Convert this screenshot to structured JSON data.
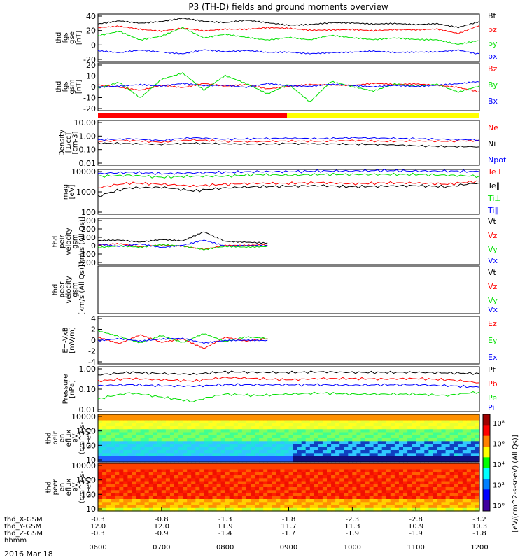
{
  "title": "P3 (TH-D) fields and ground moments overview",
  "date_label": "2016 Mar 18",
  "x_axis": {
    "hhmm": [
      "0600",
      "0700",
      "0800",
      "0900",
      "1000",
      "1100",
      "1200"
    ],
    "rows": [
      {
        "label": "thd_X-GSM",
        "values": [
          "-0.3",
          "-0.8",
          "-1.3",
          "-1.8",
          "-2.3",
          "-2.8",
          "-3.2"
        ]
      },
      {
        "label": "thd_Y-GSM",
        "values": [
          "12.0",
          "12.0",
          "11.9",
          "11.7",
          "11.3",
          "10.9",
          "10.3"
        ]
      },
      {
        "label": "thd_Z-GSM",
        "values": [
          "-0.3",
          "-0.9",
          "-1.4",
          "-1.7",
          "-1.9",
          "-1.9",
          "-1.8"
        ]
      },
      {
        "label": "hhmm",
        "values": []
      }
    ]
  },
  "colorbar": {
    "label": "[eV/(cm^2-s-sr-eV) (All Qs)]",
    "ticks": [
      "10⁸",
      "10⁶",
      "10⁴",
      "10²",
      "10⁰"
    ],
    "colors": [
      "#a00000",
      "#ff0000",
      "#ff8000",
      "#ffff00",
      "#00ff00",
      "#00ffff",
      "#0080ff",
      "#0000ff",
      "#4000a0"
    ]
  },
  "colors": {
    "black": "#000000",
    "red": "#ff0000",
    "green": "#00e000",
    "blue": "#0000ff",
    "yellow": "#ffff00"
  },
  "chart_data": [
    {
      "id": "fgs",
      "type": "line",
      "ylabel": [
        "thd",
        "fgs",
        "gse",
        "[nT]"
      ],
      "yticks": [
        "40",
        "20",
        "0",
        "-20"
      ],
      "ylim": [
        -25,
        42
      ],
      "series": [
        {
          "name": "Bt",
          "color": "black",
          "x": [
            0,
            20,
            40,
            60,
            80,
            100,
            120,
            140,
            160,
            180,
            200,
            220,
            240,
            260,
            280,
            300,
            320,
            340,
            360
          ],
          "values": [
            28,
            33,
            30,
            32,
            36,
            31,
            29,
            33,
            30,
            27,
            28,
            30,
            29,
            27,
            28,
            27,
            29,
            24,
            32
          ]
        },
        {
          "name": "bz",
          "color": "red",
          "x": [
            0,
            20,
            40,
            60,
            80,
            100,
            120,
            140,
            160,
            180,
            200,
            220,
            240,
            260,
            280,
            300,
            320,
            340,
            360
          ],
          "values": [
            22,
            24,
            20,
            18,
            23,
            19,
            21,
            20,
            22,
            21,
            19,
            20,
            21,
            19,
            20,
            19,
            20,
            14,
            26
          ]
        },
        {
          "name": "by",
          "color": "green",
          "x": [
            0,
            20,
            40,
            60,
            80,
            100,
            120,
            140,
            160,
            180,
            200,
            220,
            240,
            260,
            280,
            300,
            320,
            340,
            360
          ],
          "values": [
            12,
            18,
            5,
            10,
            22,
            8,
            14,
            10,
            6,
            9,
            5,
            11,
            8,
            6,
            9,
            7,
            6,
            -1,
            4
          ]
        },
        {
          "name": "bx",
          "color": "blue",
          "x": [
            0,
            20,
            40,
            60,
            80,
            100,
            120,
            140,
            160,
            180,
            200,
            220,
            240,
            260,
            280,
            300,
            320,
            340,
            360
          ],
          "values": [
            -10,
            -12,
            -8,
            -11,
            -14,
            -9,
            -12,
            -10,
            -12,
            -11,
            -13,
            -12,
            -12,
            -11,
            -13,
            -12,
            -11,
            -8,
            -14
          ]
        }
      ]
    },
    {
      "id": "fgs-gsm",
      "type": "line",
      "ylabel": [
        "thd",
        "fgs",
        "gsm",
        "[nT]"
      ],
      "yticks": [
        "20",
        "10",
        "0",
        "-10",
        "-20"
      ],
      "ylim": [
        -25,
        25
      ],
      "series": [
        {
          "name": "Bz",
          "color": "red",
          "x": [
            0,
            20,
            40,
            60,
            80,
            100,
            120,
            140,
            160,
            180,
            200,
            220,
            240,
            260,
            280,
            300,
            320,
            340,
            360
          ],
          "values": [
            2,
            0,
            -3,
            2,
            -1,
            3,
            0,
            2,
            -2,
            1,
            3,
            2,
            1,
            3,
            2,
            3,
            2,
            0,
            -5
          ]
        },
        {
          "name": "By",
          "color": "green",
          "x": [
            0,
            20,
            40,
            60,
            80,
            100,
            120,
            140,
            160,
            180,
            200,
            220,
            240,
            260,
            280,
            300,
            320,
            340,
            360
          ],
          "values": [
            -2,
            4,
            -12,
            8,
            15,
            -3,
            12,
            3,
            -8,
            2,
            -16,
            6,
            1,
            -4,
            3,
            0,
            2,
            -6,
            1
          ]
        },
        {
          "name": "Bx",
          "color": "blue",
          "x": [
            0,
            20,
            40,
            60,
            80,
            100,
            120,
            140,
            160,
            180,
            200,
            220,
            240,
            260,
            280,
            300,
            320,
            340,
            360
          ],
          "values": [
            0,
            1,
            2,
            0,
            3,
            1,
            2,
            0,
            4,
            1,
            0,
            2,
            1,
            0,
            2,
            1,
            2,
            3,
            5
          ]
        }
      ]
    },
    {
      "id": "density",
      "type": "line",
      "ylabel": [
        "Density",
        "[1/cc]",
        "[cm-3]"
      ],
      "yticks": [
        "10.00",
        "1.00",
        "0.10",
        "0.01"
      ],
      "ylim": [
        0.01,
        10
      ],
      "log": true,
      "series": [
        {
          "name": "Ne",
          "color": "red",
          "x": [
            0,
            30,
            60,
            90,
            120,
            150,
            180,
            210,
            240,
            270,
            300,
            330,
            360
          ],
          "values": [
            0.4,
            0.45,
            0.35,
            0.5,
            0.4,
            0.38,
            0.42,
            0.4,
            0.45,
            0.4,
            0.42,
            0.4,
            0.45
          ]
        },
        {
          "name": "Ni",
          "color": "black",
          "x": [
            0,
            30,
            60,
            90,
            120,
            150,
            180,
            210,
            240,
            270,
            300,
            330,
            360
          ],
          "values": [
            0.3,
            0.28,
            0.25,
            0.3,
            0.27,
            0.26,
            0.28,
            0.27,
            0.26,
            0.24,
            0.2,
            0.18,
            0.17
          ]
        },
        {
          "name": "Npot",
          "color": "blue",
          "x": [
            0,
            30,
            60,
            90,
            120,
            150,
            180,
            210,
            240,
            270,
            300,
            330,
            360
          ],
          "values": [
            0.5,
            0.6,
            0.45,
            0.7,
            0.55,
            0.6,
            0.65,
            0.6,
            0.7,
            0.65,
            0.6,
            0.55,
            0.5
          ]
        }
      ]
    },
    {
      "id": "temperature",
      "type": "line",
      "ylabel": [
        "mag",
        "[eV]"
      ],
      "yticks": [
        "10000",
        "1000",
        "100"
      ],
      "ylim": [
        100,
        10000
      ],
      "log": true,
      "series": [
        {
          "name": "Te⊥",
          "color": "red",
          "x": [
            0,
            30,
            60,
            90,
            120,
            150,
            180,
            210,
            240,
            270,
            300,
            330,
            360
          ],
          "values": [
            1500,
            2500,
            2200,
            1800,
            2200,
            2400,
            2400,
            2600,
            2300,
            2500,
            2500,
            2200,
            3000
          ]
        },
        {
          "name": "Te∥",
          "color": "black",
          "x": [
            0,
            30,
            60,
            90,
            120,
            150,
            180,
            210,
            240,
            270,
            300,
            330,
            360
          ],
          "values": [
            600,
            1500,
            1600,
            1100,
            1500,
            1700,
            1800,
            1900,
            1700,
            1800,
            1900,
            1700,
            2500
          ]
        },
        {
          "name": "Ti⊥",
          "color": "green",
          "x": [
            0,
            30,
            60,
            90,
            120,
            150,
            180,
            210,
            240,
            270,
            300,
            330,
            360
          ],
          "values": [
            5000,
            5500,
            4500,
            5000,
            5000,
            6000,
            5500,
            6000,
            6000,
            6000,
            6000,
            5500,
            5000
          ]
        },
        {
          "name": "Ti∥",
          "color": "blue",
          "x": [
            0,
            30,
            60,
            90,
            120,
            150,
            180,
            210,
            240,
            270,
            300,
            330,
            360
          ],
          "values": [
            6500,
            7500,
            6500,
            7000,
            7500,
            8000,
            8000,
            8500,
            8500,
            9000,
            8500,
            8500,
            8000
          ]
        }
      ]
    },
    {
      "id": "peir-velocity",
      "type": "line",
      "ylabel": [
        "thd",
        "peir",
        "velocity",
        "gsm",
        "[km/s (All Qs)]"
      ],
      "yticks": [
        "300",
        "200",
        "100",
        "0",
        "-100",
        "-200"
      ],
      "ylim": [
        -200,
        300
      ],
      "series": [
        {
          "name": "Vt",
          "color": "black",
          "x": [
            0,
            20,
            40,
            60,
            80,
            100,
            120,
            140,
            160
          ],
          "values": [
            60,
            70,
            50,
            75,
            55,
            150,
            45,
            40,
            35
          ]
        },
        {
          "name": "Vz",
          "color": "red",
          "x": [
            0,
            20,
            40,
            60,
            80,
            100,
            120,
            140,
            160
          ],
          "values": [
            10,
            20,
            -10,
            15,
            5,
            -30,
            10,
            5,
            10
          ]
        },
        {
          "name": "Vy",
          "color": "green",
          "x": [
            0,
            20,
            40,
            60,
            80,
            100,
            120,
            140,
            160
          ],
          "values": [
            -10,
            5,
            -15,
            10,
            -5,
            -40,
            0,
            -5,
            0
          ]
        },
        {
          "name": "Vx",
          "color": "blue",
          "x": [
            0,
            20,
            40,
            60,
            80,
            100,
            120,
            140,
            160
          ],
          "values": [
            20,
            0,
            30,
            -10,
            10,
            60,
            -5,
            0,
            5
          ]
        }
      ]
    },
    {
      "id": "peer-velocity",
      "type": "line",
      "ylabel": [
        "thd",
        "peer",
        "velocity",
        "gsm",
        "[km/s (All Qs)]"
      ],
      "yticks": [],
      "series": [
        {
          "name": "Vt",
          "color": "black",
          "x": [],
          "values": []
        },
        {
          "name": "Vz",
          "color": "red",
          "x": [],
          "values": []
        },
        {
          "name": "Vy",
          "color": "green",
          "x": [],
          "values": []
        },
        {
          "name": "Vx",
          "color": "blue",
          "x": [],
          "values": []
        }
      ]
    },
    {
      "id": "efield",
      "type": "line",
      "ylabel": [
        "E=-VxB",
        "[mV/m]"
      ],
      "yticks": [
        "4",
        "2",
        "0",
        "-2",
        "-4"
      ],
      "ylim": [
        -4,
        4
      ],
      "series": [
        {
          "name": "Ez",
          "color": "red",
          "x": [
            0,
            20,
            40,
            60,
            80,
            100,
            120,
            140,
            160
          ],
          "values": [
            0.5,
            -0.5,
            1.0,
            -0.3,
            0.2,
            -1.5,
            0.4,
            -0.2,
            0.3
          ]
        },
        {
          "name": "Ey",
          "color": "green",
          "x": [
            0,
            20,
            40,
            60,
            80,
            100,
            120,
            140,
            160
          ],
          "values": [
            1.5,
            0.5,
            -0.5,
            0.8,
            -0.3,
            1.2,
            -0.2,
            0.5,
            0.2
          ]
        },
        {
          "name": "Ex",
          "color": "blue",
          "x": [
            0,
            20,
            40,
            60,
            80,
            100,
            120,
            140,
            160
          ],
          "values": [
            0.0,
            0.3,
            -0.2,
            0.1,
            0.2,
            -0.5,
            0.0,
            0.1,
            0.0
          ]
        }
      ]
    },
    {
      "id": "pressure",
      "type": "line",
      "ylabel": [
        "Pressure",
        "[nPa]"
      ],
      "yticks": [
        "1.00",
        "0.10",
        "0.01"
      ],
      "ylim": [
        0.01,
        1.5
      ],
      "log": true,
      "series": [
        {
          "name": "Pt",
          "color": "black",
          "x": [
            0,
            30,
            60,
            90,
            120,
            150,
            180,
            210,
            240,
            270,
            300,
            330,
            360
          ],
          "values": [
            0.6,
            0.8,
            0.7,
            0.65,
            0.85,
            0.8,
            0.8,
            0.85,
            0.8,
            0.8,
            0.8,
            0.75,
            0.7
          ]
        },
        {
          "name": "Pb",
          "color": "red",
          "x": [
            0,
            30,
            60,
            90,
            120,
            150,
            180,
            210,
            240,
            270,
            300,
            330,
            360
          ],
          "values": [
            0.3,
            0.4,
            0.35,
            0.3,
            0.45,
            0.4,
            0.35,
            0.4,
            0.4,
            0.38,
            0.4,
            0.35,
            0.25
          ]
        },
        {
          "name": "Pe",
          "color": "green",
          "x": [
            0,
            30,
            60,
            90,
            120,
            150,
            180,
            210,
            240,
            270,
            300,
            330,
            360
          ],
          "values": [
            0.04,
            0.08,
            0.05,
            0.03,
            0.07,
            0.06,
            0.07,
            0.08,
            0.07,
            0.07,
            0.07,
            0.06,
            0.09
          ]
        },
        {
          "name": "Pi",
          "color": "blue",
          "x": [
            0,
            30,
            60,
            90,
            120,
            150,
            180,
            210,
            240,
            270,
            300,
            330,
            360
          ],
          "values": [
            0.18,
            0.2,
            0.18,
            0.17,
            0.2,
            0.2,
            0.2,
            0.2,
            0.19,
            0.2,
            0.2,
            0.18,
            0.15
          ]
        }
      ]
    },
    {
      "id": "peir-eflux",
      "type": "heatmap",
      "ylabel": [
        "thd",
        "peir",
        "en",
        "eflux",
        "eV",
        "(cm^2-s-",
        "sr-eV)"
      ],
      "yticks": [
        "10000",
        "1000",
        "100",
        "10"
      ],
      "ylim": [
        5,
        25000
      ],
      "log": true
    },
    {
      "id": "peer-eflux",
      "type": "heatmap",
      "ylabel": [
        "thd",
        "peer",
        "en",
        "eflux",
        "eV",
        "(cm^2-s-",
        "sr-eV)"
      ],
      "yticks": [
        "10000",
        "1000",
        "100",
        "10"
      ],
      "ylim": [
        5,
        25000
      ],
      "log": true
    }
  ]
}
